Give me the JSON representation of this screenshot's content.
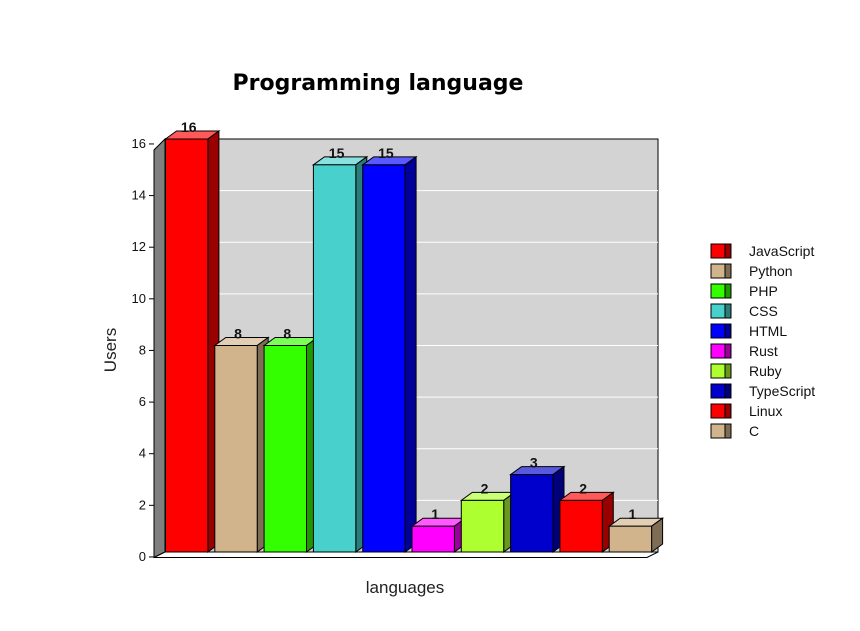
{
  "chart_data": {
    "type": "bar",
    "title": "Programming language",
    "xlabel": "languages",
    "ylabel": "Users",
    "ylim": [
      0,
      16
    ],
    "yticks": [
      0,
      2,
      4,
      6,
      8,
      10,
      12,
      14,
      16
    ],
    "grid": true,
    "legend_position": "right",
    "categories": [
      "JavaScript",
      "Python",
      "PHP",
      "CSS",
      "HTML",
      "Rust",
      "Ruby",
      "TypeScript",
      "Linux",
      "C"
    ],
    "values": [
      16,
      8,
      8,
      15,
      15,
      1,
      2,
      3,
      2,
      1
    ],
    "colors": [
      "#ff0000",
      "#d2b48c",
      "#33ff00",
      "#48d1cc",
      "#0000ff",
      "#ff00ff",
      "#adff2f",
      "#0000cd",
      "#ff0000",
      "#d2b48c"
    ]
  }
}
